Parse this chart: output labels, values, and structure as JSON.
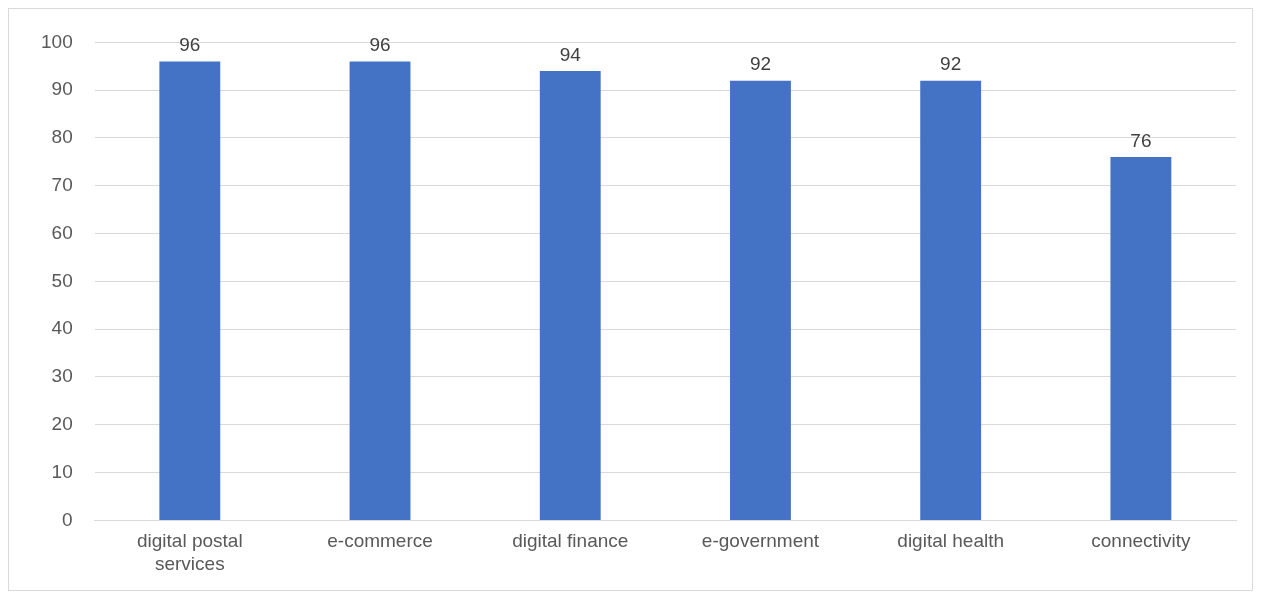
{
  "chart_data": {
    "type": "bar",
    "categories": [
      "digital postal services",
      "e-commerce",
      "digital finance",
      "e-government",
      "digital health",
      "connectivity"
    ],
    "values": [
      96,
      96,
      94,
      92,
      92,
      76
    ],
    "color": "#4472c4",
    "ylim": [
      0,
      100
    ],
    "yticks": [
      0,
      10,
      20,
      30,
      40,
      50,
      60,
      70,
      80,
      90,
      100
    ],
    "grid": "y",
    "data_labels": true,
    "legend": false
  }
}
